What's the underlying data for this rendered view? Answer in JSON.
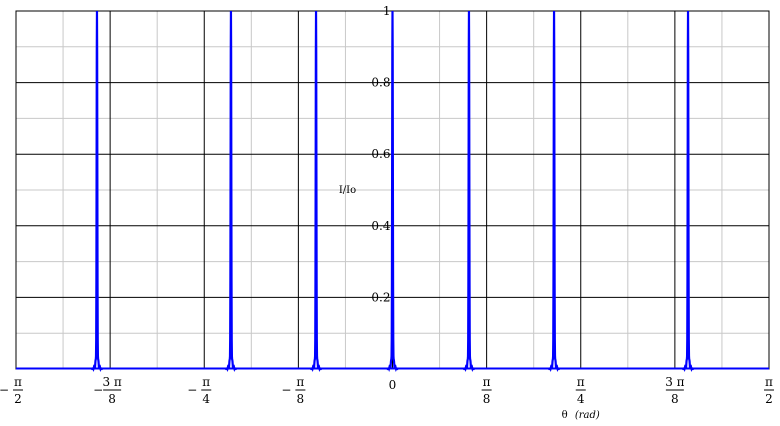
{
  "chart_data": {
    "type": "line",
    "title": "",
    "xlabel_main": "θ",
    "xlabel_unit": "(rad)",
    "ylabel": "I/Io",
    "xlim": [
      -1.5708,
      1.5708
    ],
    "ylim": [
      0,
      1
    ],
    "grid": true,
    "colors": {
      "line": "#0000ff",
      "major_grid": "#000000",
      "minor_grid": "#c8c8c8"
    },
    "x_ticks": [
      {
        "value": -1.5708,
        "sign": "−",
        "num": "π",
        "den": "2"
      },
      {
        "value": -1.1781,
        "sign": "−",
        "num": "3 π",
        "den": "8"
      },
      {
        "value": -0.7854,
        "sign": "−",
        "num": "π",
        "den": "4"
      },
      {
        "value": -0.3927,
        "sign": "−",
        "num": "π",
        "den": "8"
      },
      {
        "value": 0,
        "plain": "0"
      },
      {
        "value": 0.3927,
        "sign": "",
        "num": "π",
        "den": "8"
      },
      {
        "value": 0.7854,
        "sign": "",
        "num": "π",
        "den": "4"
      },
      {
        "value": 1.1781,
        "sign": "",
        "num": "3 π",
        "den": "8"
      },
      {
        "value": 1.5708,
        "sign": "",
        "num": "π",
        "den": "2"
      }
    ],
    "y_ticks": [
      {
        "value": 0.2,
        "label": "0.2"
      },
      {
        "value": 0.4,
        "label": "0.4"
      },
      {
        "value": 0.6,
        "label": "0.6"
      },
      {
        "value": 0.8,
        "label": "0.8"
      },
      {
        "value": 1.0,
        "label": "1"
      }
    ],
    "series": [
      {
        "peaks": [
          -1.233,
          -0.674,
          -0.319,
          0,
          0.319,
          0.674,
          1.233
        ],
        "peak_value": 1,
        "width": 0.004
      }
    ]
  }
}
